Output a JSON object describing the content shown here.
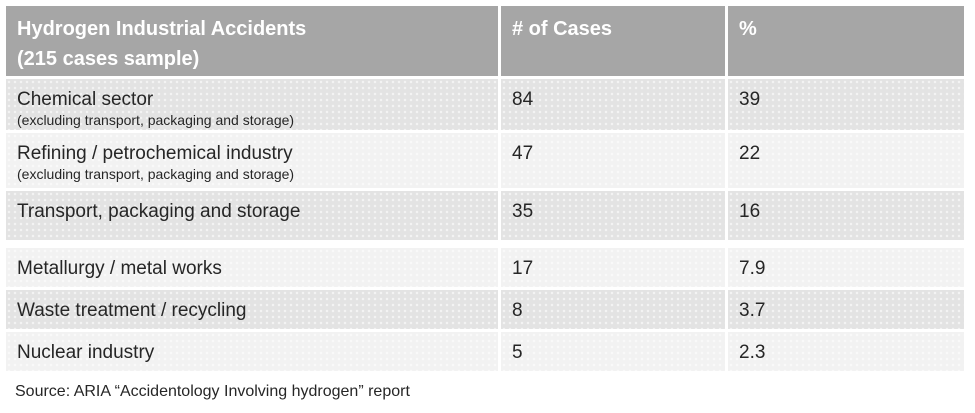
{
  "chart_data": {
    "type": "table",
    "title": "Hydrogen Industrial Accidents (215 cases sample)",
    "title_lines": [
      "Hydrogen Industrial Accidents",
      "(215 cases sample)"
    ],
    "columns": [
      "# of Cases",
      "%"
    ],
    "rows": [
      {
        "sector": "Chemical sector",
        "note": "(excluding transport, packaging and storage)",
        "cases": 84,
        "percent": 39
      },
      {
        "sector": "Refining / petrochemical industry",
        "note": "(excluding transport, packaging and storage)",
        "cases": 47,
        "percent": 22
      },
      {
        "sector": "Transport, packaging and storage",
        "cases": 35,
        "percent": 16
      },
      {
        "sector": "Metallurgy / metal works",
        "cases": 17,
        "percent": 7.9
      },
      {
        "sector": "Waste treatment / recycling",
        "cases": 8,
        "percent": 3.7
      },
      {
        "sector": "Nuclear industry",
        "cases": 5,
        "percent": 2.3
      }
    ],
    "source": "Source: ARIA “Accidentology Involving hydrogen” report"
  },
  "colors": {
    "header_bg": "#a6a6a6",
    "row_dark_bg": "#e3e3e3",
    "row_light_bg": "#f2f2f2",
    "header_text": "#ffffff",
    "body_text": "#262626",
    "page_bg": "#ffffff"
  }
}
